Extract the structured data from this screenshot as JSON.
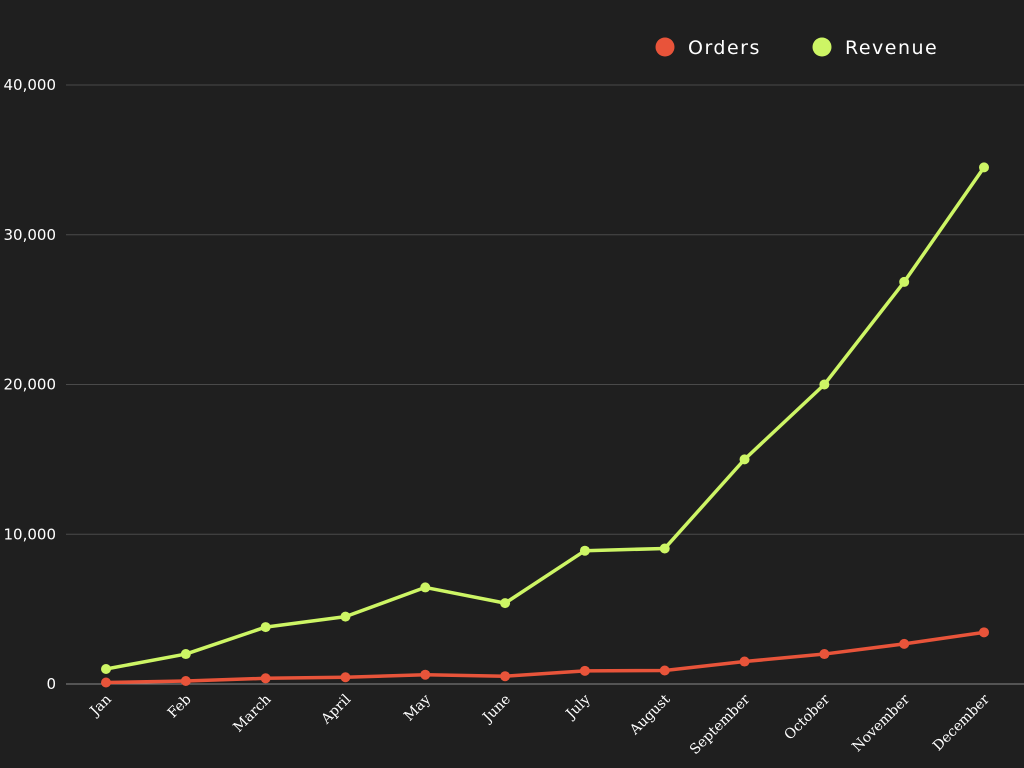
{
  "chart_data": {
    "type": "line",
    "categories": [
      "Jan",
      "Feb",
      "March",
      "April",
      "May",
      "June",
      "July",
      "August",
      "September",
      "October",
      "November",
      "December"
    ],
    "series": [
      {
        "name": "Orders",
        "color": "#e8543a",
        "values": [
          100,
          200,
          380,
          450,
          620,
          520,
          880,
          900,
          1500,
          2000,
          2680,
          3450
        ]
      },
      {
        "name": "Revenue",
        "color": "#cdf565",
        "values": [
          1000,
          2000,
          3800,
          4500,
          6450,
          5400,
          8900,
          9050,
          15000,
          20000,
          26850,
          34500
        ]
      }
    ],
    "yticks": [
      0,
      10000,
      20000,
      30000,
      40000
    ],
    "ytick_labels": [
      "0",
      "10,000",
      "20,000",
      "30,000",
      "40,000"
    ],
    "ylim": [
      0,
      40000
    ],
    "grid": true,
    "legend": "top-right",
    "title": "",
    "xlabel": "",
    "ylabel": ""
  },
  "colors": {
    "background": "#1f1f1f",
    "gridline": "#4a4a4a",
    "baseline": "#8a8a8a",
    "text": "#ffffff"
  }
}
